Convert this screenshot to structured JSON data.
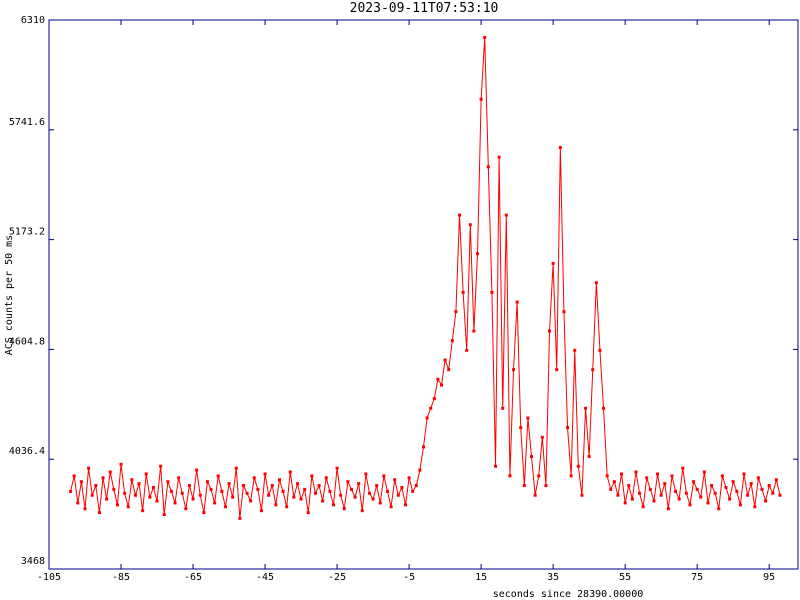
{
  "chart_data": {
    "type": "line",
    "title": "2023-09-11T07:53:10",
    "xlabel": "seconds since 28390.00000",
    "ylabel": "ACS counts per 50 ms",
    "xlim": [
      -105,
      103
    ],
    "ylim": [
      3468,
      6310
    ],
    "xticks": [
      -105,
      -85,
      -65,
      -45,
      -25,
      -5,
      15,
      35,
      55,
      75,
      95
    ],
    "yticks": [
      3468,
      4036.4,
      4604.8,
      5173.2,
      5741.6,
      6310
    ],
    "x": [
      -99,
      -98,
      -97,
      -96,
      -95,
      -94,
      -93,
      -92,
      -91,
      -90,
      -89,
      -88,
      -87,
      -86,
      -85,
      -84,
      -83,
      -82,
      -81,
      -80,
      -79,
      -78,
      -77,
      -76,
      -75,
      -74,
      -73,
      -72,
      -71,
      -70,
      -69,
      -68,
      -67,
      -66,
      -65,
      -64,
      -63,
      -62,
      -61,
      -60,
      -59,
      -58,
      -57,
      -56,
      -55,
      -54,
      -53,
      -52,
      -51,
      -50,
      -49,
      -48,
      -47,
      -46,
      -45,
      -44,
      -43,
      -42,
      -41,
      -40,
      -39,
      -38,
      -37,
      -36,
      -35,
      -34,
      -33,
      -32,
      -31,
      -30,
      -29,
      -28,
      -27,
      -26,
      -25,
      -24,
      -23,
      -22,
      -21,
      -20,
      -19,
      -18,
      -17,
      -16,
      -15,
      -14,
      -13,
      -12,
      -11,
      -10,
      -9,
      -8,
      -7,
      -6,
      -5,
      -4,
      -3,
      -2,
      -1,
      0,
      1,
      2,
      3,
      4,
      5,
      6,
      7,
      8,
      9,
      10,
      11,
      12,
      13,
      14,
      15,
      16,
      17,
      18,
      19,
      20,
      21,
      22,
      23,
      24,
      25,
      26,
      27,
      28,
      29,
      30,
      31,
      32,
      33,
      34,
      35,
      36,
      37,
      38,
      39,
      40,
      41,
      42,
      43,
      44,
      45,
      46,
      47,
      48,
      49,
      50,
      51,
      52,
      53,
      54,
      55,
      56,
      57,
      58,
      59,
      60,
      61,
      62,
      63,
      64,
      65,
      66,
      67,
      68,
      69,
      70,
      71,
      72,
      73,
      74,
      75,
      76,
      77,
      78,
      79,
      80,
      81,
      82,
      83,
      84,
      85,
      86,
      87,
      88,
      89,
      90,
      91,
      92,
      93,
      94,
      95,
      96,
      97,
      98
    ],
    "series": [
      {
        "color": "#ff0000",
        "values": [
          3870,
          3950,
          3810,
          3920,
          3780,
          3990,
          3850,
          3900,
          3760,
          3940,
          3830,
          3970,
          3880,
          3800,
          4010,
          3860,
          3790,
          3930,
          3850,
          3910,
          3770,
          3960,
          3840,
          3890,
          3820,
          4000,
          3750,
          3920,
          3870,
          3810,
          3940,
          3860,
          3780,
          3900,
          3830,
          3980,
          3850,
          3760,
          3920,
          3880,
          3810,
          3950,
          3870,
          3790,
          3910,
          3840,
          3990,
          3730,
          3900,
          3860,
          3820,
          3940,
          3880,
          3770,
          3960,
          3850,
          3900,
          3800,
          3930,
          3870,
          3790,
          3970,
          3840,
          3910,
          3830,
          3880,
          3760,
          3950,
          3860,
          3900,
          3820,
          3940,
          3870,
          3800,
          3990,
          3850,
          3780,
          3920,
          3880,
          3840,
          3910,
          3770,
          3960,
          3860,
          3830,
          3900,
          3810,
          3950,
          3870,
          3790,
          3930,
          3850,
          3890,
          3800,
          3940,
          3870,
          3900,
          3980,
          4100,
          4250,
          4300,
          4350,
          4450,
          4420,
          4550,
          4500,
          4650,
          4800,
          5300,
          4900,
          4600,
          5250,
          4700,
          5100,
          5900,
          6220,
          5550,
          4900,
          4000,
          5600,
          4300,
          5300,
          3950,
          4500,
          4850,
          4200,
          3900,
          4250,
          4050,
          3850,
          3950,
          4150,
          3900,
          4700,
          5050,
          4500,
          5650,
          4800,
          4200,
          3950,
          4600,
          4000,
          3850,
          4300,
          4050,
          4500,
          4950,
          4600,
          4300,
          3950,
          3880,
          3920,
          3850,
          3960,
          3810,
          3900,
          3830,
          3970,
          3860,
          3790,
          3940,
          3880,
          3820,
          3960,
          3850,
          3910,
          3780,
          3950,
          3870,
          3830,
          3990,
          3860,
          3800,
          3920,
          3880,
          3840,
          3970,
          3810,
          3900,
          3860,
          3780,
          3950,
          3890,
          3830,
          3920,
          3870,
          3800,
          3960,
          3850,
          3910,
          3790,
          3940,
          3880,
          3820,
          3900,
          3860,
          3930,
          3850
        ]
      }
    ]
  }
}
